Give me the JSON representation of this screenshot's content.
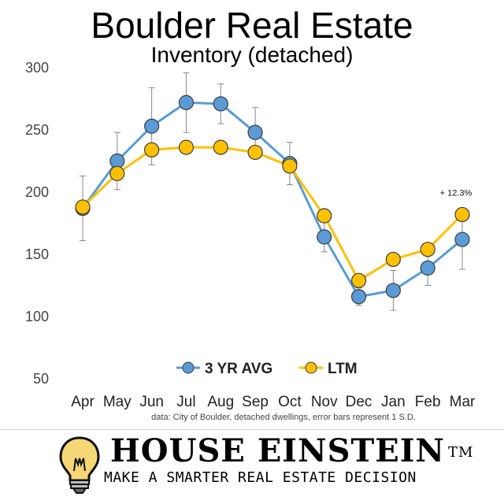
{
  "chart_data": {
    "type": "line",
    "title": "Boulder Real Estate",
    "subtitle": "Inventory (detached)",
    "categories": [
      "Apr",
      "May",
      "Jun",
      "Jul",
      "Aug",
      "Sep",
      "Oct",
      "Nov",
      "Dec",
      "Jan",
      "Feb",
      "Mar"
    ],
    "ylim": [
      50,
      300
    ],
    "yticks": [
      50,
      100,
      150,
      200,
      250,
      300
    ],
    "grid": false,
    "legend": "bottom-center",
    "series": [
      {
        "name": "3 YR AVG",
        "color": "#5b9bd5",
        "values": [
          187,
          225,
          253,
          272,
          271,
          248,
          223,
          164,
          116,
          121,
          139,
          162
        ],
        "error": [
          26,
          23,
          31,
          24,
          16,
          20,
          17,
          12,
          7,
          16,
          14,
          24
        ]
      },
      {
        "name": "LTM",
        "color": "#ffc000",
        "values": [
          188,
          215,
          234,
          236,
          236,
          232,
          221,
          181,
          129,
          146,
          154,
          182
        ]
      }
    ],
    "annotations": [
      {
        "category": "Mar",
        "text": "+ 12.3%"
      }
    ],
    "source": "data: City of Boulder, detached dwellings, error bars represent 1 S.D."
  },
  "branding": {
    "name": "HOUSE EINSTEIN",
    "trademark": "TM",
    "tagline": "MAKE A SMARTER REAL ESTATE DECISION",
    "logo_icon": "lightbulb-icon"
  }
}
